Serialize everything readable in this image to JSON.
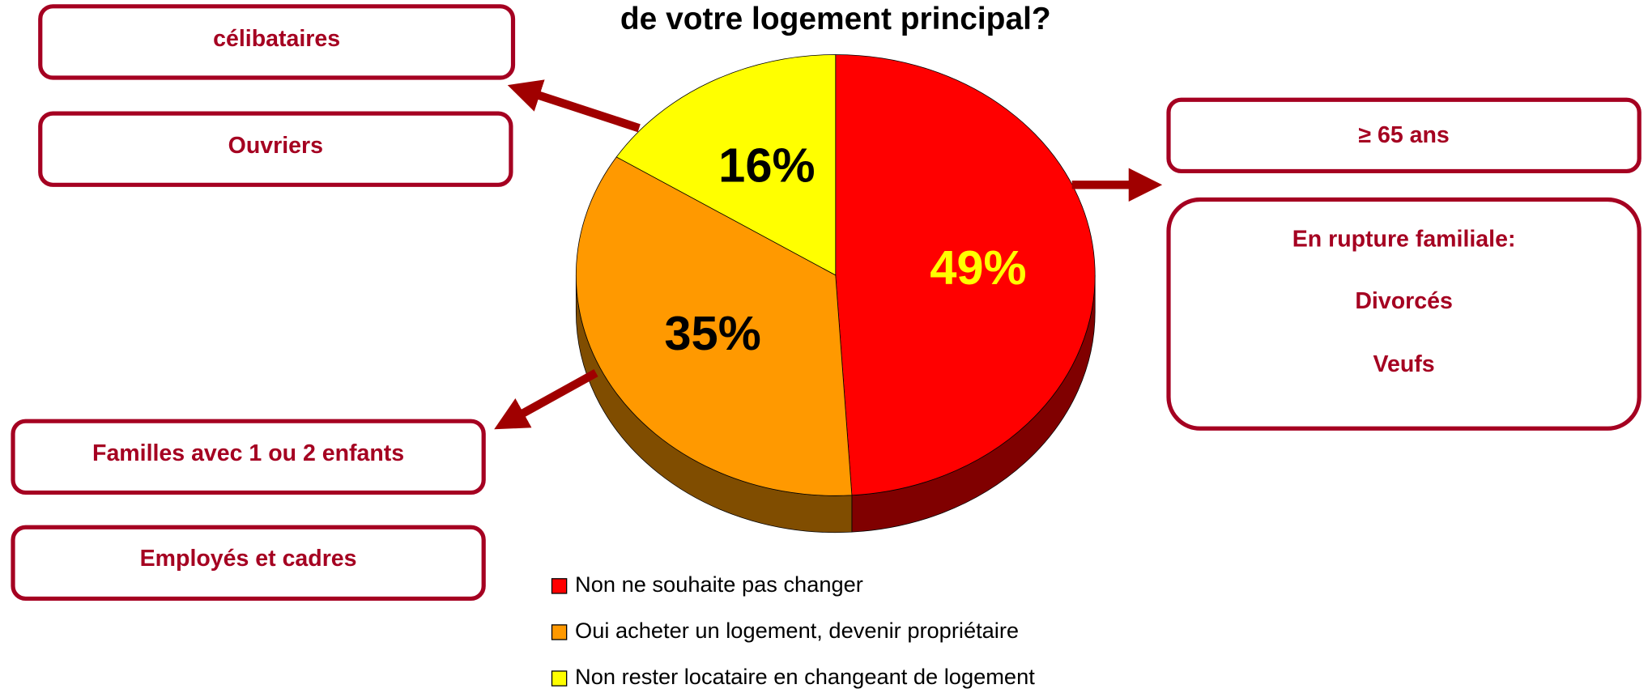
{
  "chart_data": {
    "type": "pie",
    "title": "de votre logement principal?",
    "categories": [
      "Non ne souhaite pas changer",
      "Oui acheter un logement, devenir propriétaire",
      "Non rester locataire en changeant de logement"
    ],
    "values": [
      49,
      35,
      16
    ],
    "value_labels": [
      "49%",
      "35%",
      "16%"
    ],
    "colors": [
      "#ff0000",
      "#ff9900",
      "#ffff00"
    ],
    "label_colors": [
      "#ffff00",
      "#000000",
      "#000000"
    ],
    "annotations": [
      "célibataires",
      "Ouvriers",
      "≥ 65 ans",
      "En rupture familiale:",
      "Divorcés",
      "Veufs",
      "Familles avec 1 ou 2 enfants",
      "Employés et cadres"
    ]
  }
}
